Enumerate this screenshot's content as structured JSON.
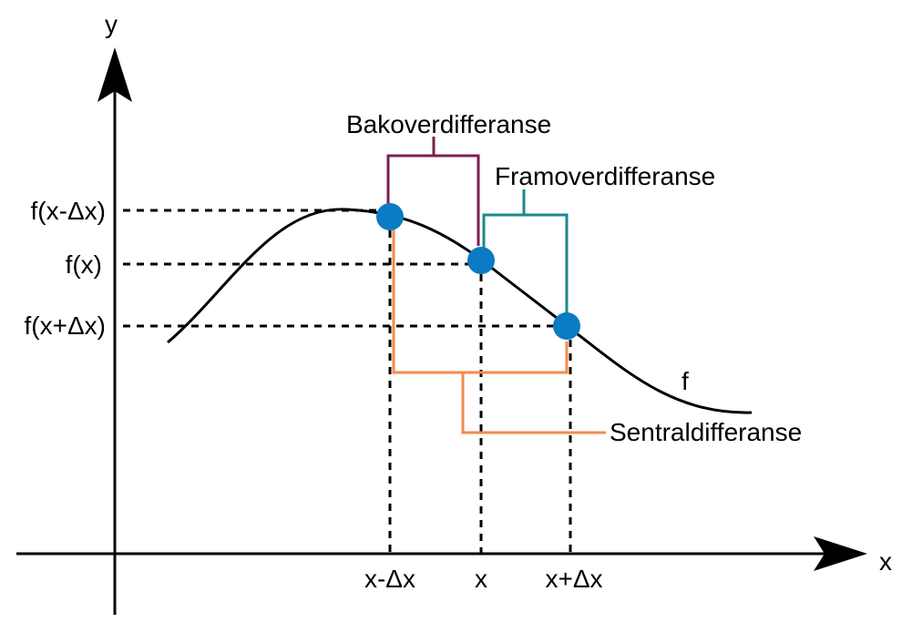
{
  "axes": {
    "x_label": "x",
    "y_label": "y"
  },
  "y_ticks": {
    "prev": "f(x-Δx)",
    "center": "f(x)",
    "next": "f(x+Δx)"
  },
  "x_ticks": {
    "prev": "x-Δx",
    "center": "x",
    "next": "x+Δx"
  },
  "curve_label": "f",
  "brackets": {
    "backward": "Bakoverdifferanse",
    "forward": "Framoverdifferanse",
    "central": "Sentraldifferanse"
  },
  "colors": {
    "axis": "#000000",
    "curve": "#000000",
    "point": "#0a7bc4",
    "backward": "#7b1f4e",
    "forward": "#1a8a8c",
    "central": "#f58a4b"
  }
}
